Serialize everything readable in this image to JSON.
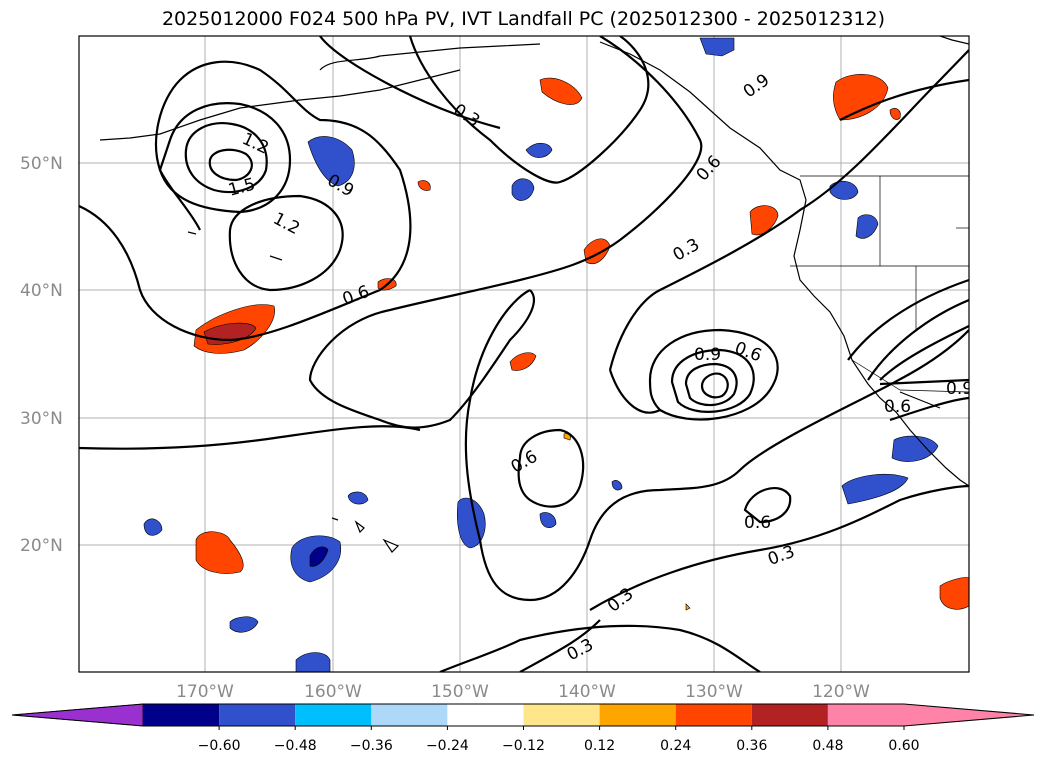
{
  "title": "2025012000 F024 500 hPa PV, IVT Landfall PC (2025012300 - 2025012312)",
  "lat_ticks": [
    "50°N",
    "40°N",
    "30°N",
    "20°N"
  ],
  "lon_ticks": [
    "170°W",
    "160°W",
    "150°W",
    "140°W",
    "130°W",
    "120°W"
  ],
  "contour_labels": [
    "1.2",
    "1.5",
    "1.2",
    "0.9",
    "0.3",
    "0.9",
    "0.6",
    "0.3",
    "0.6",
    "0.9",
    "0.6",
    "0.6",
    "0.9",
    "0.6",
    "0.6",
    "0.3",
    "0.3",
    "0.3"
  ],
  "colorbar": {
    "ticks": [
      "−0.60",
      "−0.48",
      "−0.36",
      "−0.24",
      "−0.12",
      "0.12",
      "0.24",
      "0.36",
      "0.48",
      "0.60"
    ],
    "colors": {
      "under": "#9b30d0",
      "levels": [
        "#00008b",
        "#3050cc",
        "#00bfff",
        "#add8f7",
        "#ffffff",
        "#ffe68a",
        "#ffa500",
        "#ff4500",
        "#b22222",
        "#ff82a8"
      ]
    }
  },
  "colors": {
    "contour": "#000000",
    "coast": "#000000",
    "grid": "#b0b0b0",
    "tick_text": "#8a8a8a"
  }
}
